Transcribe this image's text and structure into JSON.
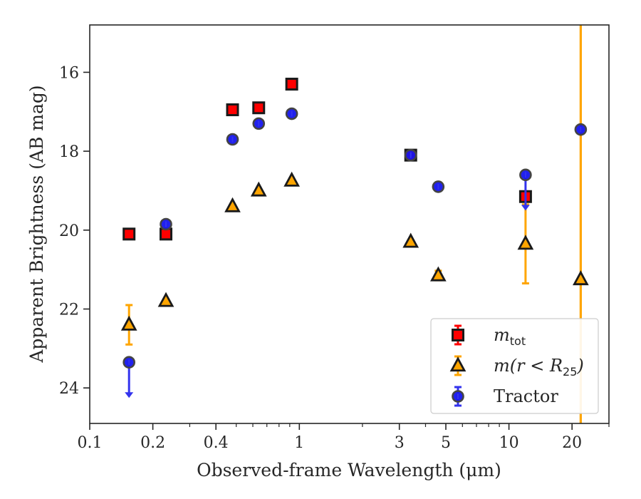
{
  "chart_data": {
    "type": "scatter",
    "xlabel": "Observed-frame Wavelength (μm)",
    "ylabel": "Apparent Brightness (AB mag)",
    "x_scale": "log",
    "xlim": [
      0.1,
      30
    ],
    "ylim": [
      24.9,
      14.8
    ],
    "y_inverted": true,
    "x_ticks": [
      {
        "value": 0.1,
        "label": "0.1"
      },
      {
        "value": 0.2,
        "label": "0.2"
      },
      {
        "value": 0.4,
        "label": "0.4"
      },
      {
        "value": 1,
        "label": "1"
      },
      {
        "value": 3,
        "label": "3"
      },
      {
        "value": 5,
        "label": "5"
      },
      {
        "value": 10,
        "label": "10"
      },
      {
        "value": 20,
        "label": "20"
      }
    ],
    "y_ticks": [
      {
        "value": 16,
        "label": "16"
      },
      {
        "value": 18,
        "label": "18"
      },
      {
        "value": 20,
        "label": "20"
      },
      {
        "value": 22,
        "label": "22"
      },
      {
        "value": 24,
        "label": "24"
      }
    ],
    "grid": false,
    "legend_position": "lower-right",
    "series": [
      {
        "name": "m_tot",
        "legend": {
          "base": "m",
          "sub": "tot",
          "rest": ""
        },
        "marker": "square",
        "color": "#ff0000",
        "edge_color": "#1a1a1a",
        "err_color": "#ff0000",
        "points": [
          {
            "x": 0.154,
            "y": 20.1
          },
          {
            "x": 0.231,
            "y": 20.1
          },
          {
            "x": 0.48,
            "y": 16.95
          },
          {
            "x": 0.64,
            "y": 16.9
          },
          {
            "x": 0.92,
            "y": 16.3
          },
          {
            "x": 3.4,
            "y": 18.1
          },
          {
            "x": 12.0,
            "y": 19.15
          }
        ]
      },
      {
        "name": "m(r < R_25)",
        "legend": {
          "base": "m(r < R",
          "sub": "25",
          "rest": ")"
        },
        "marker": "triangle",
        "color": "#ffa500",
        "edge_color": "#1a1a1a",
        "err_color": "#ffa500",
        "points": [
          {
            "x": 0.154,
            "y": 22.4,
            "err": 0.5
          },
          {
            "x": 0.231,
            "y": 21.8
          },
          {
            "x": 0.48,
            "y": 19.4
          },
          {
            "x": 0.64,
            "y": 19.0
          },
          {
            "x": 0.92,
            "y": 18.75
          },
          {
            "x": 3.4,
            "y": 20.3
          },
          {
            "x": 4.6,
            "y": 21.15,
            "err": 0.12
          },
          {
            "x": 12.0,
            "y": 20.35,
            "err": 1.0
          },
          {
            "x": 22.0,
            "y": 21.25,
            "err_full": true
          }
        ]
      },
      {
        "name": "Tractor",
        "legend": {
          "base": "Tractor",
          "sub": "",
          "rest": ""
        },
        "marker": "circle",
        "color": "#1515ee",
        "edge_color": "#444444",
        "err_color": "#3333ee",
        "points": [
          {
            "x": 0.154,
            "y": 23.35,
            "upper_limit": true
          },
          {
            "x": 0.231,
            "y": 19.85
          },
          {
            "x": 0.48,
            "y": 17.7
          },
          {
            "x": 0.64,
            "y": 17.3
          },
          {
            "x": 0.92,
            "y": 17.05
          },
          {
            "x": 3.4,
            "y": 18.1
          },
          {
            "x": 4.6,
            "y": 18.9
          },
          {
            "x": 12.0,
            "y": 18.6,
            "upper_limit": true
          },
          {
            "x": 22.0,
            "y": 17.45
          }
        ]
      }
    ]
  }
}
